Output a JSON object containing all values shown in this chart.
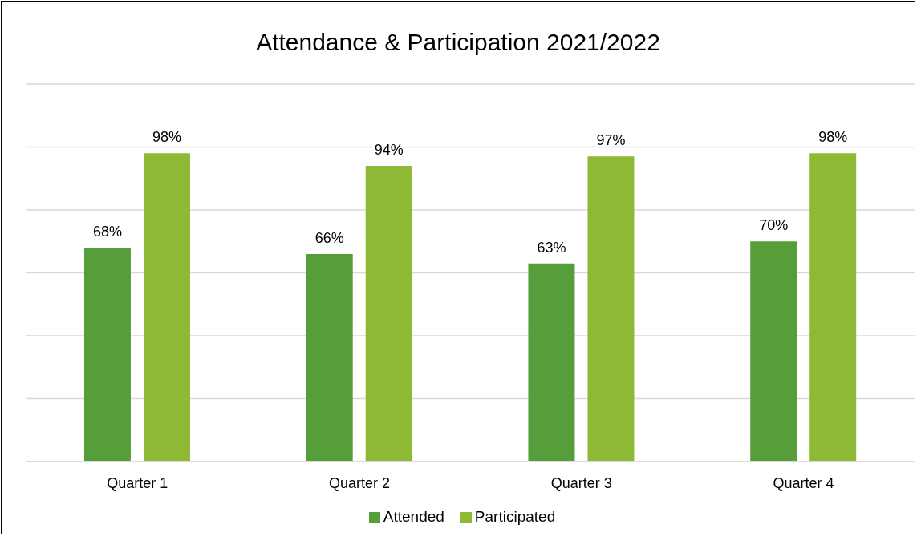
{
  "chart_data": {
    "type": "bar",
    "title": "Attendance & Participation 2021/2022",
    "categories": [
      "Quarter 1",
      "Quarter 2",
      "Quarter 3",
      "Quarter 4"
    ],
    "series": [
      {
        "name": "Attended",
        "color": "#559e3a",
        "values": [
          68,
          66,
          63,
          70
        ],
        "value_labels": [
          "68%",
          "66%",
          "63%",
          "70%"
        ]
      },
      {
        "name": "Participated",
        "color": "#8db935",
        "values": [
          98,
          94,
          97,
          98
        ],
        "value_labels": [
          "98%",
          "94%",
          "97%",
          "98%"
        ]
      }
    ],
    "ylim": [
      0,
      120
    ],
    "yticks": [
      {
        "value": 0,
        "label": null
      },
      {
        "value": 20,
        "label": null
      },
      {
        "value": 40,
        "label": null
      },
      {
        "value": 60,
        "label": null
      },
      {
        "value": 80,
        "label": null
      },
      {
        "value": 100,
        "label": null
      },
      {
        "value": 120,
        "label": null
      }
    ],
    "grid": "y",
    "legend": "bottom",
    "tick_labels": "x"
  }
}
